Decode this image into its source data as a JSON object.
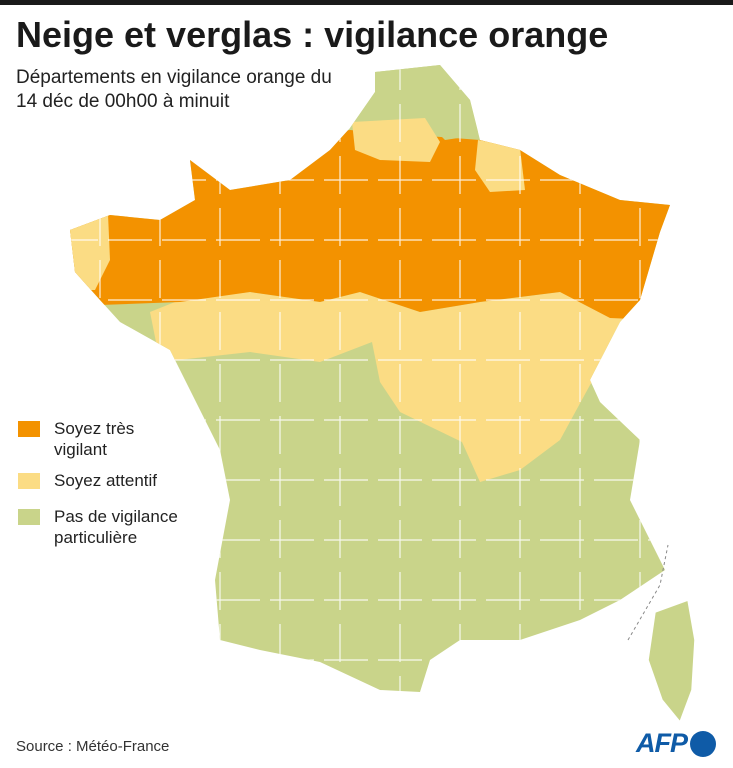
{
  "header": {
    "title": "Neige et verglas : vigilance orange",
    "subtitle": "Départements en vigilance orange du 14 déc de 00h00 à minuit"
  },
  "legend": {
    "items": [
      {
        "label": "Soyez très vigilant",
        "color": "#f39200"
      },
      {
        "label": "Soyez attentif",
        "color": "#fbdc84"
      },
      {
        "label": "Pas de vigilance particulière",
        "color": "#c9d48a"
      }
    ]
  },
  "footer": {
    "source": "Source : Météo-France",
    "logo": "AFP"
  }
}
